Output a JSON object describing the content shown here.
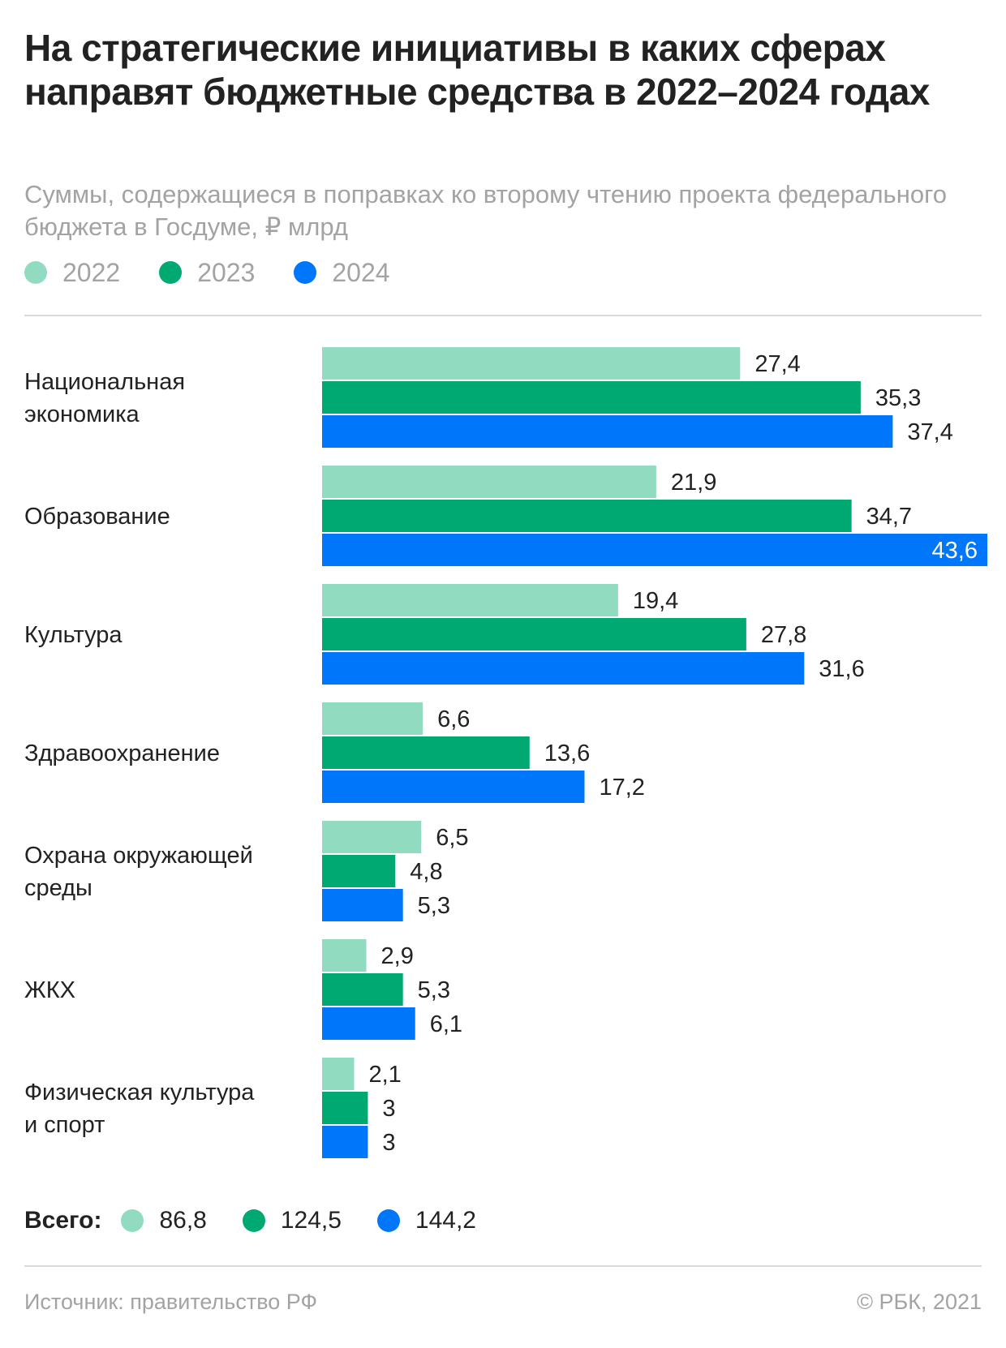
{
  "header": {
    "title": "На стратегические инициативы в каких сферах направят бюджетные средства в 2022–2024 годах",
    "subtitle": "Суммы, содержащиеся в поправках ко второму чтению проекта федерального бюджета в Госдуме, ₽ млрд"
  },
  "legend": [
    {
      "label": "2022",
      "color": "#91dcc1"
    },
    {
      "label": "2023",
      "color": "#00a971"
    },
    {
      "label": "2024",
      "color": "#0076fa"
    }
  ],
  "chart_data": {
    "type": "bar",
    "orientation": "horizontal",
    "categories": [
      "Национальная экономика",
      "Образование",
      "Культура",
      "Здравоохранение",
      "Охрана окружающей среды",
      "ЖКХ",
      "Физическая культура и спорт"
    ],
    "category_lines": [
      [
        "Национальная",
        "экономика"
      ],
      [
        "Образование"
      ],
      [
        "Культура"
      ],
      [
        "Здравоохранение"
      ],
      [
        "Охрана окружающей",
        "среды"
      ],
      [
        "ЖКХ"
      ],
      [
        "Физическая культура",
        "и спорт"
      ]
    ],
    "series": [
      {
        "name": "2022",
        "color": "#91dcc1",
        "values": [
          27.4,
          21.9,
          19.4,
          6.6,
          6.5,
          2.9,
          2.1
        ],
        "labels": [
          "27,4",
          "21,9",
          "19,4",
          "6,6",
          "6,5",
          "2,9",
          "2,1"
        ]
      },
      {
        "name": "2023",
        "color": "#00a971",
        "values": [
          35.3,
          34.7,
          27.8,
          13.6,
          4.8,
          5.3,
          3
        ],
        "labels": [
          "35,3",
          "34,7",
          "27,8",
          "13,6",
          "4,8",
          "5,3",
          "3"
        ]
      },
      {
        "name": "2024",
        "color": "#0076fa",
        "values": [
          37.4,
          43.6,
          31.6,
          17.2,
          5.3,
          6.1,
          3
        ],
        "labels": [
          "37,4",
          "43,6",
          "31,6",
          "17,2",
          "5,3",
          "6,1",
          "3"
        ]
      }
    ],
    "xlim": [
      0,
      43.6
    ],
    "grid": false,
    "legend_position": "top-left"
  },
  "totals": {
    "label": "Всего:",
    "items": [
      {
        "value": "86,8",
        "color": "#91dcc1"
      },
      {
        "value": "124,5",
        "color": "#00a971"
      },
      {
        "value": "144,2",
        "color": "#0076fa"
      }
    ]
  },
  "footer": {
    "source": "Источник: правительство РФ",
    "copyright": "© РБК, 2021"
  }
}
